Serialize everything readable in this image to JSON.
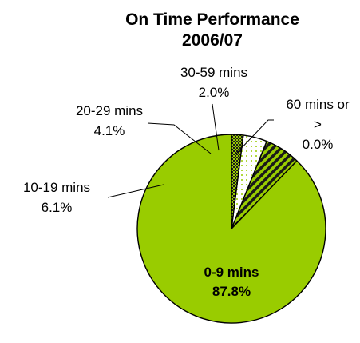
{
  "chart_data": {
    "type": "pie",
    "title": "On Time Performance",
    "subtitle": "2006/07",
    "categories": [
      "0-9 mins",
      "10-19 mins",
      "20-29 mins",
      "30-59 mins",
      "60 mins or >"
    ],
    "values": [
      87.8,
      6.1,
      4.1,
      2.0,
      0.0
    ],
    "value_labels": [
      "87.8%",
      "6.1%",
      "4.1%",
      "2.0%",
      "0.0%"
    ],
    "label_lines": [
      [
        "0-9 mins",
        "87.8%"
      ],
      [
        "10-19 mins",
        "6.1%"
      ],
      [
        "20-29 mins",
        "4.1%"
      ],
      [
        "30-59 mins",
        "2.0%"
      ],
      [
        "60 mins or",
        ">",
        "0.0%"
      ]
    ],
    "slice_fills": [
      "solid-green",
      "diagonal-stripes",
      "dots",
      "checker",
      "none"
    ],
    "colors": {
      "accent": "#99cc00",
      "stripe": "#1a1a1a",
      "dot": "#99cc00",
      "outline": "#000000"
    },
    "start_angle_deg": 0,
    "direction": "counterclockwise",
    "legend": "none"
  }
}
